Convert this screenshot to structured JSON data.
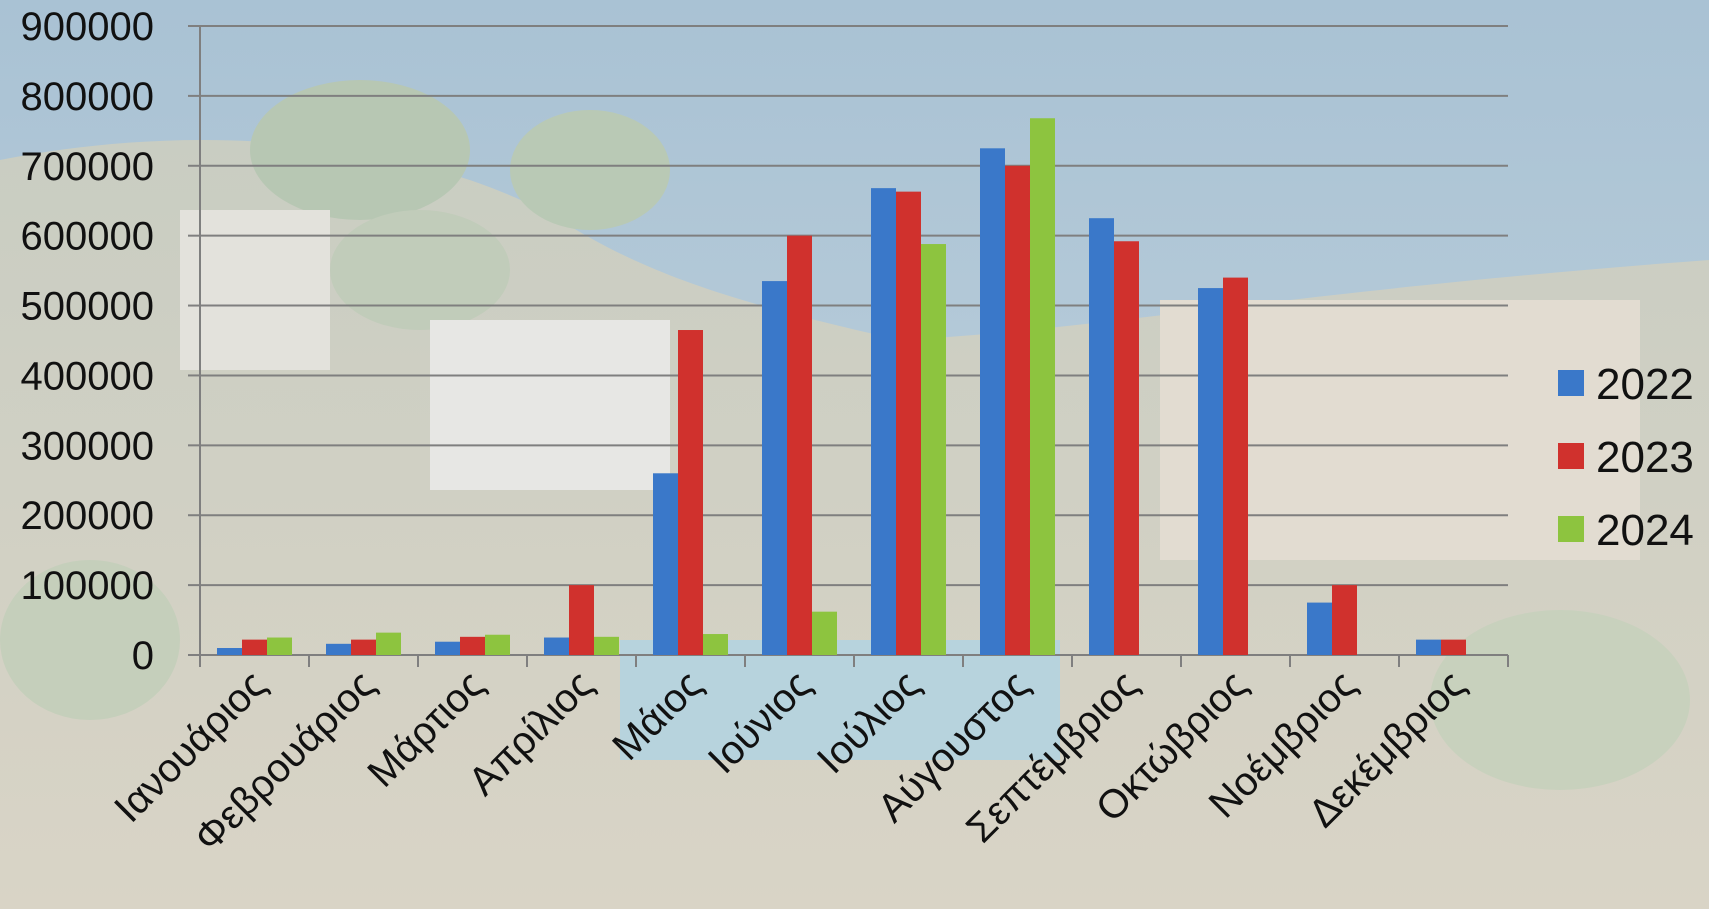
{
  "chart_data": {
    "type": "bar",
    "title": "",
    "xlabel": "",
    "ylabel": "",
    "ylim": [
      0,
      900000
    ],
    "yticks": [
      0,
      100000,
      200000,
      300000,
      400000,
      500000,
      600000,
      700000,
      800000,
      900000
    ],
    "ytick_labels": [
      "0",
      "100000",
      "200000",
      "300000",
      "400000",
      "500000",
      "600000",
      "700000",
      "800000",
      "900000"
    ],
    "grid": true,
    "legend_position": "right",
    "categories": [
      "Ιανουάριος",
      "Φεβρουάριος",
      "Μάρτιος",
      "Απρίλιος",
      "Μάιος",
      "Ιούνιος",
      "Ιούλιος",
      "Αύγουστος",
      "Σεπτέμβριος",
      "Οκτώβριος",
      "Νοέμβριος",
      "Δεκέμβριος"
    ],
    "series": [
      {
        "name": "2022",
        "color": "#3a78c9",
        "values": [
          10000,
          16000,
          19000,
          25000,
          260000,
          535000,
          668000,
          725000,
          625000,
          525000,
          75000,
          22000
        ]
      },
      {
        "name": "2023",
        "color": "#d0312d",
        "values": [
          22000,
          22000,
          26000,
          100000,
          465000,
          600000,
          663000,
          700000,
          592000,
          540000,
          100000,
          22000
        ]
      },
      {
        "name": "2024",
        "color": "#8dc43f",
        "values": [
          25000,
          32000,
          29000,
          26000,
          30000,
          62000,
          588000,
          768000,
          null,
          null,
          null,
          null
        ]
      }
    ]
  }
}
